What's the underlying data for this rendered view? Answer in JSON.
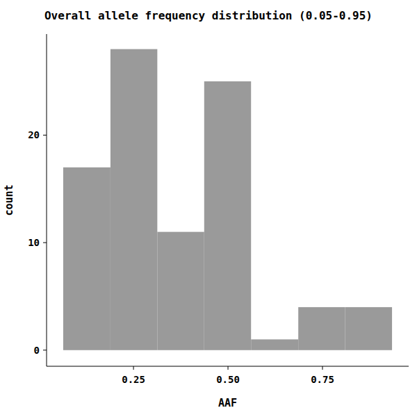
{
  "chart_data": {
    "type": "histogram",
    "title": "Overall allele frequency distribution (0.05-0.95)",
    "x_label": "AAF",
    "y_label": "count",
    "bins": [
      0.064,
      0.189,
      0.313,
      0.437,
      0.561,
      0.686,
      0.81,
      0.934
    ],
    "values": [
      17,
      28,
      11,
      25,
      1,
      4,
      4
    ],
    "color": "#9a9a9a",
    "xlim": [
      0.02,
      0.978
    ],
    "xticks": [
      {
        "value": 0.25,
        "label": "0.25"
      },
      {
        "value": 0.5,
        "label": "0.50"
      },
      {
        "value": 0.75,
        "label": "0.75"
      }
    ],
    "ylim": [
      -1.5,
      29.4
    ],
    "yticks": [
      0,
      10,
      20
    ],
    "grid": false
  }
}
